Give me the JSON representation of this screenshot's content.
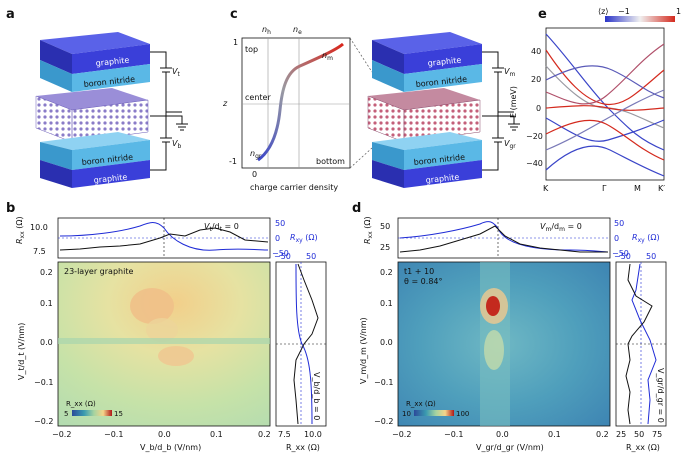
{
  "panels": {
    "a": "a",
    "b": "b",
    "c": "c",
    "d": "d",
    "e": "e"
  },
  "stack_a": {
    "top_layer": "graphite",
    "top_bn": "boron nitride",
    "bot_bn": "boron nitride",
    "bot_layer": "graphite",
    "v_top": "V",
    "v_top_sub": "t",
    "v_bot": "V",
    "v_bot_sub": "b"
  },
  "stack_c2": {
    "top_layer": "graphite",
    "top_bn": "boron nitride",
    "bot_bn": "boron nitride",
    "bot_layer": "graphite",
    "v_top": "V",
    "v_top_sub": "m",
    "v_bot": "V",
    "v_bot_sub": "gr"
  },
  "panel_c": {
    "label_nh": "n",
    "label_nh_sub": "h",
    "label_ne": "n",
    "label_ne_sub": "e",
    "ytick_top": "1",
    "ytick_bot": "-1",
    "xtick": "0",
    "ylabel": "z",
    "lab_top": "top",
    "lab_center": "center",
    "lab_bottom": "bottom",
    "lab_nm": "n",
    "lab_nm_sub": "m",
    "lab_ngr": "n",
    "lab_ngr_sub": "gr",
    "xlabel": "charge carrier density"
  },
  "panel_e": {
    "colorbar_label": "⟨z⟩",
    "cb_min": "−1",
    "cb_max": "1",
    "ylabel": "E (meV)",
    "yticks": [
      "40",
      "20",
      "0",
      "−20",
      "−40"
    ],
    "xticks": [
      "K",
      "Γ",
      "M",
      "K′"
    ]
  },
  "panel_b": {
    "top_ylabel": "R",
    "top_ylabel_sub": "xx",
    "top_ylabel_unit": " (Ω)",
    "top_yticks": [
      "10.0",
      "7.5"
    ],
    "top_right_yticks": [
      "50",
      "0",
      "−50"
    ],
    "top_right_label": "R",
    "top_right_label_sub": "xy",
    "top_right_label_unit": " (Ω)",
    "condition": "V",
    "condition_sub": "t",
    "condition_rest": "/d",
    "condition_sub2": "t",
    "condition_tail": " = 0",
    "map_text": "23-layer graphite",
    "yticks": [
      "0.2",
      "0.1",
      "0.0",
      "−0.1",
      "−0.2"
    ],
    "xticks": [
      "−0.2",
      "−0.1",
      "0.0",
      "0.1",
      "0.2"
    ],
    "ylabel": "V_t/d_t (V/nm)",
    "xlabel": "V_b/d_b (V/nm)",
    "cb_title": "R_xx (Ω)",
    "cb_min": "5",
    "cb_max": "15",
    "side_top_ticks": [
      "−50",
      "50"
    ],
    "side_bot_ticks": [
      "7.5",
      "10.0"
    ],
    "side_xlabel": "R_xx (Ω)",
    "side_condition": "V_b/d_b = 0"
  },
  "panel_d": {
    "top_ylabel": "R",
    "top_ylabel_sub": "xx",
    "top_ylabel_unit": " (Ω)",
    "top_yticks": [
      "50",
      "25"
    ],
    "top_right_yticks": [
      "50",
      "0",
      "−50"
    ],
    "top_right_label": "R",
    "top_right_label_sub": "xy",
    "top_right_label_unit": " (Ω)",
    "condition": "V",
    "condition_sub": "m",
    "condition_rest": "/d",
    "condition_sub2": "m",
    "condition_tail": " = 0",
    "map_text1": "t1 + 10",
    "map_text2": "θ = 0.84°",
    "yticks": [
      "0.2",
      "0.1",
      "0.0",
      "−0.1",
      "−0.2"
    ],
    "xticks": [
      "−0.2",
      "−0.1",
      "0.0",
      "0.1",
      "0.2"
    ],
    "ylabel": "V_m/d_m (V/nm)",
    "xlabel": "V_gr/d_gr (V/nm)",
    "cb_title": "R_xx (Ω)",
    "cb_min": "10",
    "cb_max": "100",
    "side_top_ticks": [
      "−50",
      "50"
    ],
    "side_bot_ticks": [
      "25",
      "50",
      "75"
    ],
    "side_xlabel": "R_xx (Ω)",
    "side_condition": "V_gr/d_gr = 0"
  },
  "colors": {
    "graphite": "#3a3fd9",
    "bn": "#5ab8e6",
    "red": "#d9261c",
    "blue": "#1f2bd6"
  }
}
